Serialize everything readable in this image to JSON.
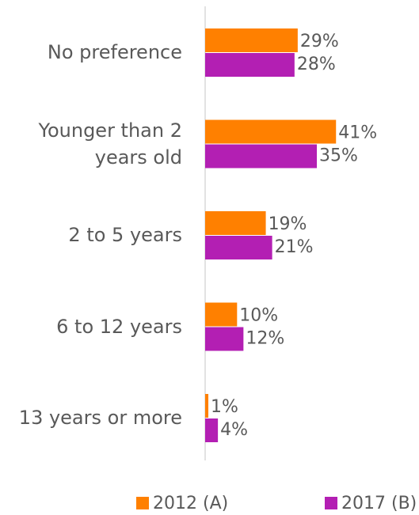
{
  "chart_data": {
    "type": "bar",
    "orientation": "horizontal",
    "categories": [
      "No preference",
      "Younger than 2 years old",
      "2 to 5 years",
      "6 to 12 years",
      "13 years or more"
    ],
    "series": [
      {
        "name": "2012 (A)",
        "color": "#ff8000",
        "values": [
          29,
          41,
          19,
          10,
          1
        ],
        "value_labels": [
          "29%",
          "41%",
          "19%",
          "10%",
          "1%"
        ]
      },
      {
        "name": "2017 (B)",
        "color": "#b31fb3",
        "values": [
          28,
          35,
          21,
          12,
          4
        ],
        "value_labels": [
          "28%",
          "35%",
          "21%",
          "12%",
          "4%"
        ]
      }
    ],
    "legend": "bottom"
  }
}
